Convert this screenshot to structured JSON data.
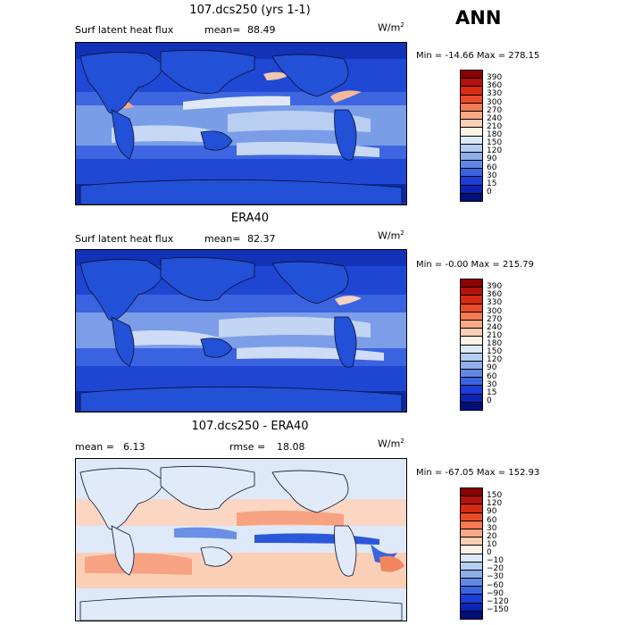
{
  "season": "ANN",
  "panels": [
    {
      "title": "107.dcs250 (yrs 1-1)",
      "field_label": "Surf latent heat flux",
      "stat1_label": "mean=",
      "stat1_value": "88.49",
      "units_base": "W/m",
      "units_exp": "2",
      "min_label": "Min = ",
      "min_value": "-14.66",
      "max_label": "Max = ",
      "max_value": "278.15",
      "levels": [
        "390",
        "360",
        "330",
        "300",
        "270",
        "240",
        "210",
        "180",
        "150",
        "120",
        "90",
        "60",
        "30",
        "15",
        "0"
      ],
      "colors": [
        "#8b0000",
        "#b2120b",
        "#d62a12",
        "#ec4b2a",
        "#f57a55",
        "#f9a886",
        "#fbcfb5",
        "#fdf0e4",
        "#dce9f7",
        "#b5cdf0",
        "#8eaeea",
        "#6288e6",
        "#3963e0",
        "#1a3ed6",
        "#0b24b5",
        "#00107a"
      ]
    },
    {
      "title": "ERA40",
      "field_label": "Surf latent heat flux",
      "stat1_label": "mean=",
      "stat1_value": "82.37",
      "units_base": "W/m",
      "units_exp": "2",
      "min_label": "Min = ",
      "min_value": "-0.00",
      "max_label": "Max = ",
      "max_value": "215.79",
      "levels": [
        "390",
        "360",
        "330",
        "300",
        "270",
        "240",
        "210",
        "180",
        "150",
        "120",
        "90",
        "60",
        "30",
        "15",
        "0"
      ],
      "colors": [
        "#8b0000",
        "#b2120b",
        "#d62a12",
        "#ec4b2a",
        "#f57a55",
        "#f9a886",
        "#fbcfb5",
        "#fdf0e4",
        "#dce9f7",
        "#b5cdf0",
        "#8eaeea",
        "#6288e6",
        "#3963e0",
        "#1a3ed6",
        "#0b24b5",
        "#00107a"
      ]
    },
    {
      "title": "107.dcs250 - ERA40",
      "stat1_label": "mean =",
      "stat1_value": "6.13",
      "stat2_label": "rmse =",
      "stat2_value": "18.08",
      "units_base": "W/m",
      "units_exp": "2",
      "min_label": "Min = ",
      "min_value": "-67.05",
      "max_label": "Max = ",
      "max_value": "152.93",
      "levels": [
        "150",
        "120",
        "90",
        "60",
        "30",
        "20",
        "10",
        "0",
        "−10",
        "−20",
        "−30",
        "−60",
        "−90",
        "−120",
        "−150"
      ],
      "colors": [
        "#8b0000",
        "#b2120b",
        "#d62a12",
        "#ec4b2a",
        "#f57a55",
        "#f9a886",
        "#fbcfb5",
        "#fdf0e4",
        "#dbe8f8",
        "#b5cdf0",
        "#8eaeea",
        "#6288e6",
        "#3963e0",
        "#1a3ed6",
        "#0b24b5",
        "#00107a"
      ]
    }
  ]
}
